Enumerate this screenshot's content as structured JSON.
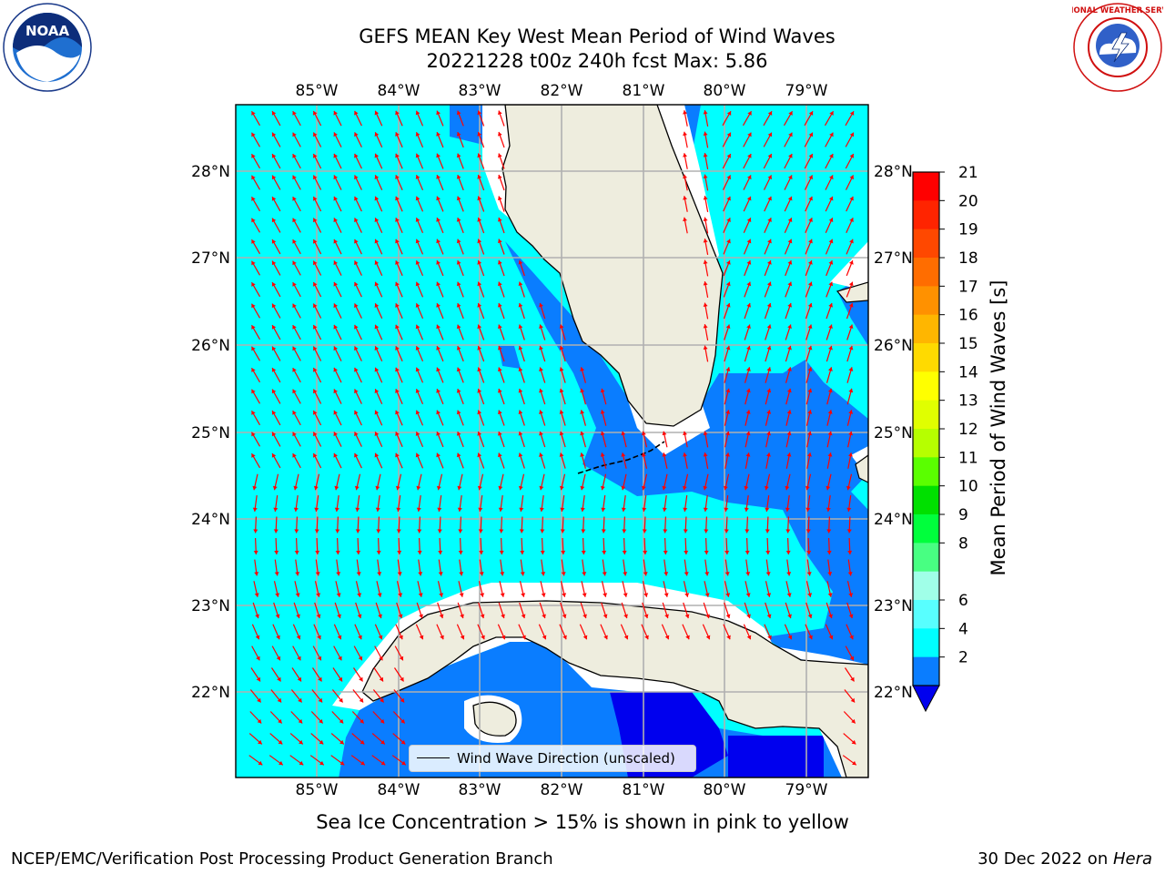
{
  "title": {
    "line1": "GEFS MEAN Key West Mean Period of Wind Waves",
    "line2": "20221228 t00z 240h fcst   Max: 5.86"
  },
  "map": {
    "lon_labels": [
      "85°W",
      "84°W",
      "83°W",
      "82°W",
      "81°W",
      "80°W",
      "79°W"
    ],
    "lat_labels": [
      "28°N",
      "27°N",
      "26°N",
      "25°N",
      "24°N",
      "23°N",
      "22°N"
    ],
    "colors": {
      "land": "#eeedde",
      "ocean_4_6": "#00ffff",
      "ocean_2_4": "#0a7dff",
      "ocean_lt2": "#0000ee",
      "arrow": "#ff0000",
      "grid": "#b0b0b0"
    },
    "legend_label": "Wind Wave Direction (unscaled)"
  },
  "colorbar": {
    "label": "Mean Period of Wind Waves [s]",
    "ticks": [
      "21",
      "20",
      "19",
      "18",
      "17",
      "16",
      "15",
      "14",
      "13",
      "12",
      "11",
      "10",
      "9",
      "8",
      "6",
      "4",
      "2"
    ],
    "colors": [
      "#ff0000",
      "#ff2400",
      "#ff4800",
      "#ff6d00",
      "#ff9100",
      "#ffb600",
      "#ffda00",
      "#ffff00",
      "#e0ff00",
      "#b6ff00",
      "#5aff00",
      "#00e000",
      "#00ff3c",
      "#48ff82",
      "#a0ffe8",
      "#58ffff",
      "#00ffff",
      "#0a7dff"
    ],
    "extend_color": "#0000ee"
  },
  "notes": {
    "sea_ice": "Sea Ice Concentration > 15% is shown in pink to yellow",
    "footer_left": "NCEP/EMC/Verification Post Processing Product Generation Branch",
    "footer_right_prefix": "30 Dec 2022 on ",
    "footer_right_host": "Hera"
  },
  "logos": {
    "left": "NOAA",
    "right": "NATIONAL WEATHER SERVICE"
  }
}
